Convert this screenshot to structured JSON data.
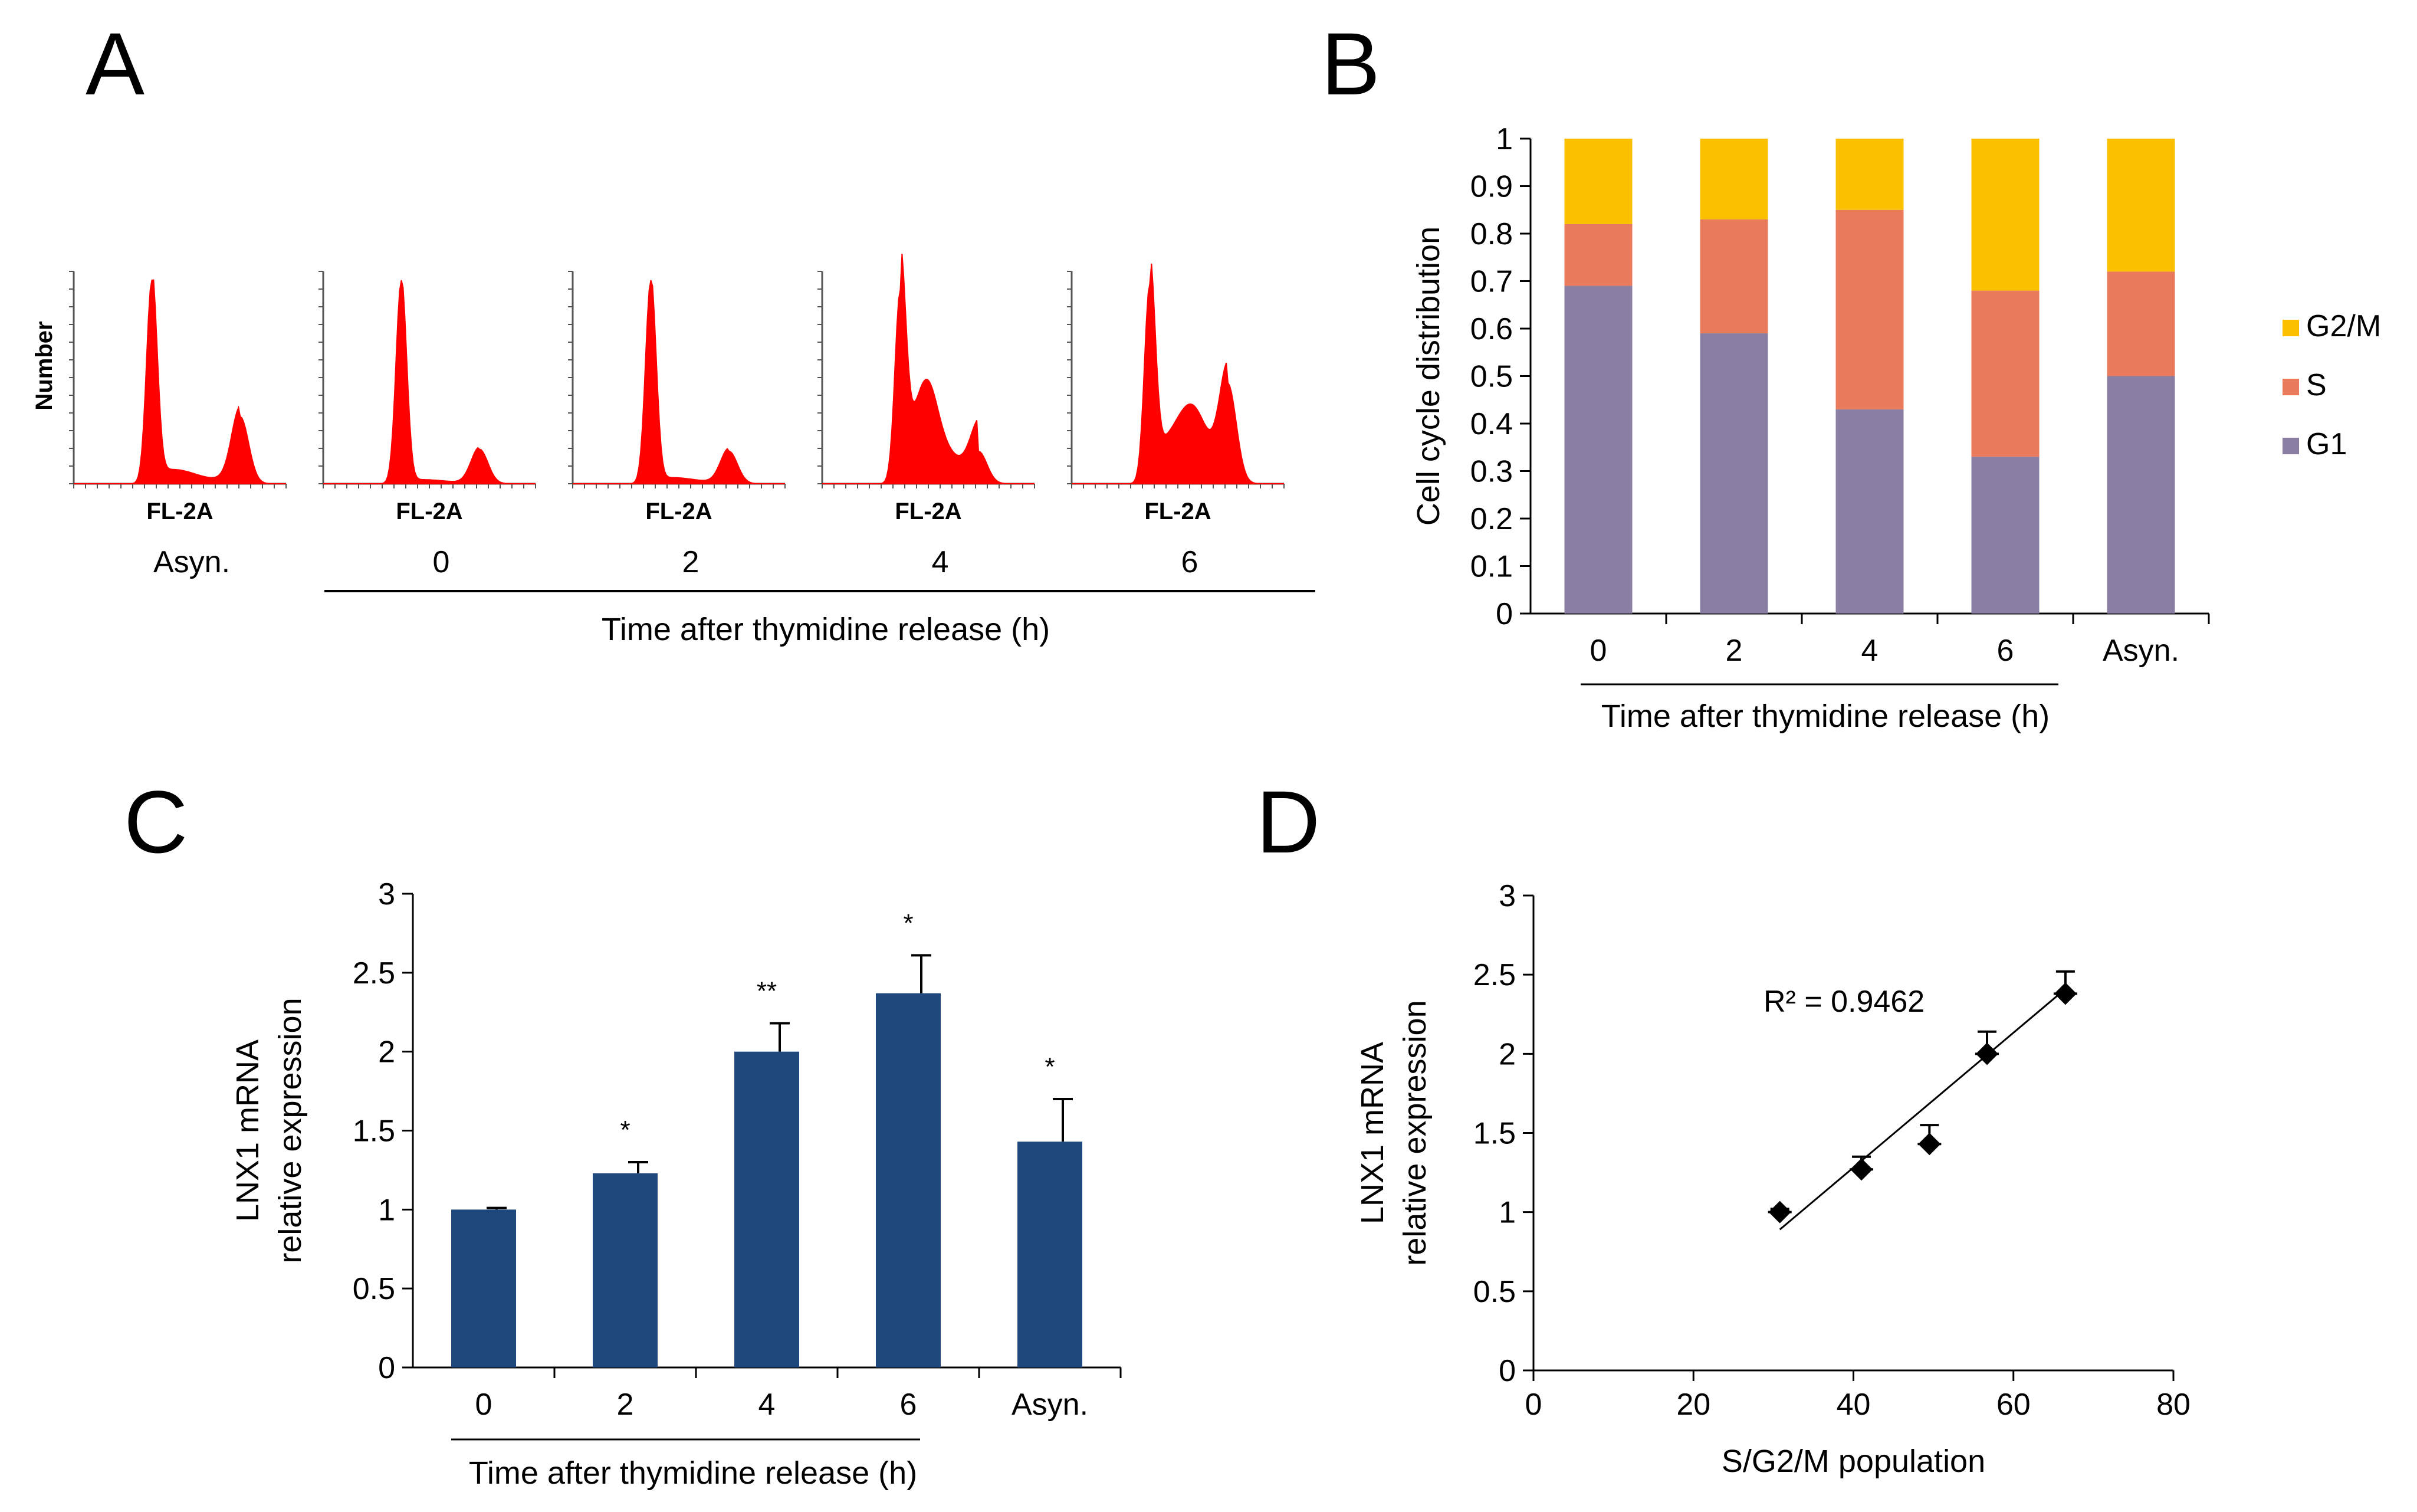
{
  "panels": {
    "A": {
      "letter": "A",
      "ylabel": "Number",
      "xlabel": "FL-2A",
      "group_label": "Time after thymidine release (h)",
      "histograms": [
        {
          "condition": "Asyn.",
          "g1_height": 1.0,
          "sphase": 0.07,
          "g2_height": 0.33
        },
        {
          "condition": "0",
          "g1_height": 1.0,
          "sphase": 0.02,
          "g2_height": 0.17
        },
        {
          "condition": "2",
          "g1_height": 1.0,
          "sphase": 0.03,
          "g2_height": 0.16
        },
        {
          "condition": "4",
          "g1_height": 0.95,
          "sphase": 0.3,
          "g2_height": 0.16
        },
        {
          "condition": "6",
          "g1_height": 0.98,
          "sphase": 0.2,
          "g2_height": 0.48
        }
      ]
    },
    "B": {
      "letter": "B",
      "group_label": "Time after thymidine release (h)"
    },
    "C": {
      "letter": "C",
      "group_label": "Time after thymidine release (h)"
    },
    "D": {
      "letter": "D"
    }
  },
  "chart_data": [
    {
      "id": "B",
      "type": "bar",
      "stacked": true,
      "title": "",
      "xlabel": "Time after thymidine release (h)",
      "ylabel": "Cell cycle distribution",
      "categories": [
        "0",
        "2",
        "4",
        "6",
        "Asyn."
      ],
      "series": [
        {
          "name": "G1",
          "values": [
            0.69,
            0.59,
            0.43,
            0.33,
            0.5
          ]
        },
        {
          "name": "S",
          "values": [
            0.13,
            0.24,
            0.42,
            0.35,
            0.22
          ]
        },
        {
          "name": "G2/M",
          "values": [
            0.18,
            0.17,
            0.15,
            0.32,
            0.28
          ]
        }
      ],
      "colors": {
        "G1": "#8a7fa3",
        "S": "#e97a5c",
        "G2/M": "#fbc000"
      },
      "legend_order": [
        "G2/M",
        "S",
        "G1"
      ],
      "ylim": [
        0,
        1
      ],
      "yticks": [
        "0",
        "0.1",
        "0.2",
        "0.3",
        "0.4",
        "0.5",
        "0.6",
        "0.7",
        "0.8",
        "0.9",
        "1"
      ],
      "legend_position": "right"
    },
    {
      "id": "C",
      "type": "bar",
      "title": "",
      "xlabel": "Time after thymidine release (h)",
      "ylabel_lines": [
        "LNX1 mRNA",
        "relative expression"
      ],
      "categories": [
        "0",
        "2",
        "4",
        "6",
        "Asyn."
      ],
      "values": [
        1.0,
        1.23,
        2.0,
        2.37,
        1.43
      ],
      "errors": [
        0.01,
        0.07,
        0.18,
        0.24,
        0.27
      ],
      "significance": [
        "",
        "*",
        "**",
        "*",
        "*"
      ],
      "color": "#1f497d",
      "ylim": [
        0,
        3
      ],
      "yticks": [
        "0",
        "0.5",
        "1",
        "1.5",
        "2",
        "2.5",
        "3"
      ]
    },
    {
      "id": "D",
      "type": "scatter",
      "title": "",
      "xlabel": "S/G2/M population",
      "ylabel_lines": [
        "LNX1 mRNA",
        "relative expression"
      ],
      "points": [
        {
          "x": 30.8,
          "y": 1.0,
          "err": 0.02
        },
        {
          "x": 41.0,
          "y": 1.27,
          "err": 0.08
        },
        {
          "x": 49.5,
          "y": 1.43,
          "err": 0.12
        },
        {
          "x": 56.7,
          "y": 2.0,
          "err": 0.14
        },
        {
          "x": 66.5,
          "y": 2.38,
          "err": 0.14
        }
      ],
      "trendline": {
        "x": [
          30.8,
          66.5
        ],
        "y": [
          0.89,
          2.41
        ]
      },
      "annotation": "R² = 0.9462",
      "xlim": [
        0,
        80
      ],
      "ylim": [
        0,
        3
      ],
      "xticks": [
        "0",
        "20",
        "40",
        "60",
        "80"
      ],
      "yticks": [
        "0",
        "0.5",
        "1",
        "1.5",
        "2",
        "2.5",
        "3"
      ]
    }
  ]
}
